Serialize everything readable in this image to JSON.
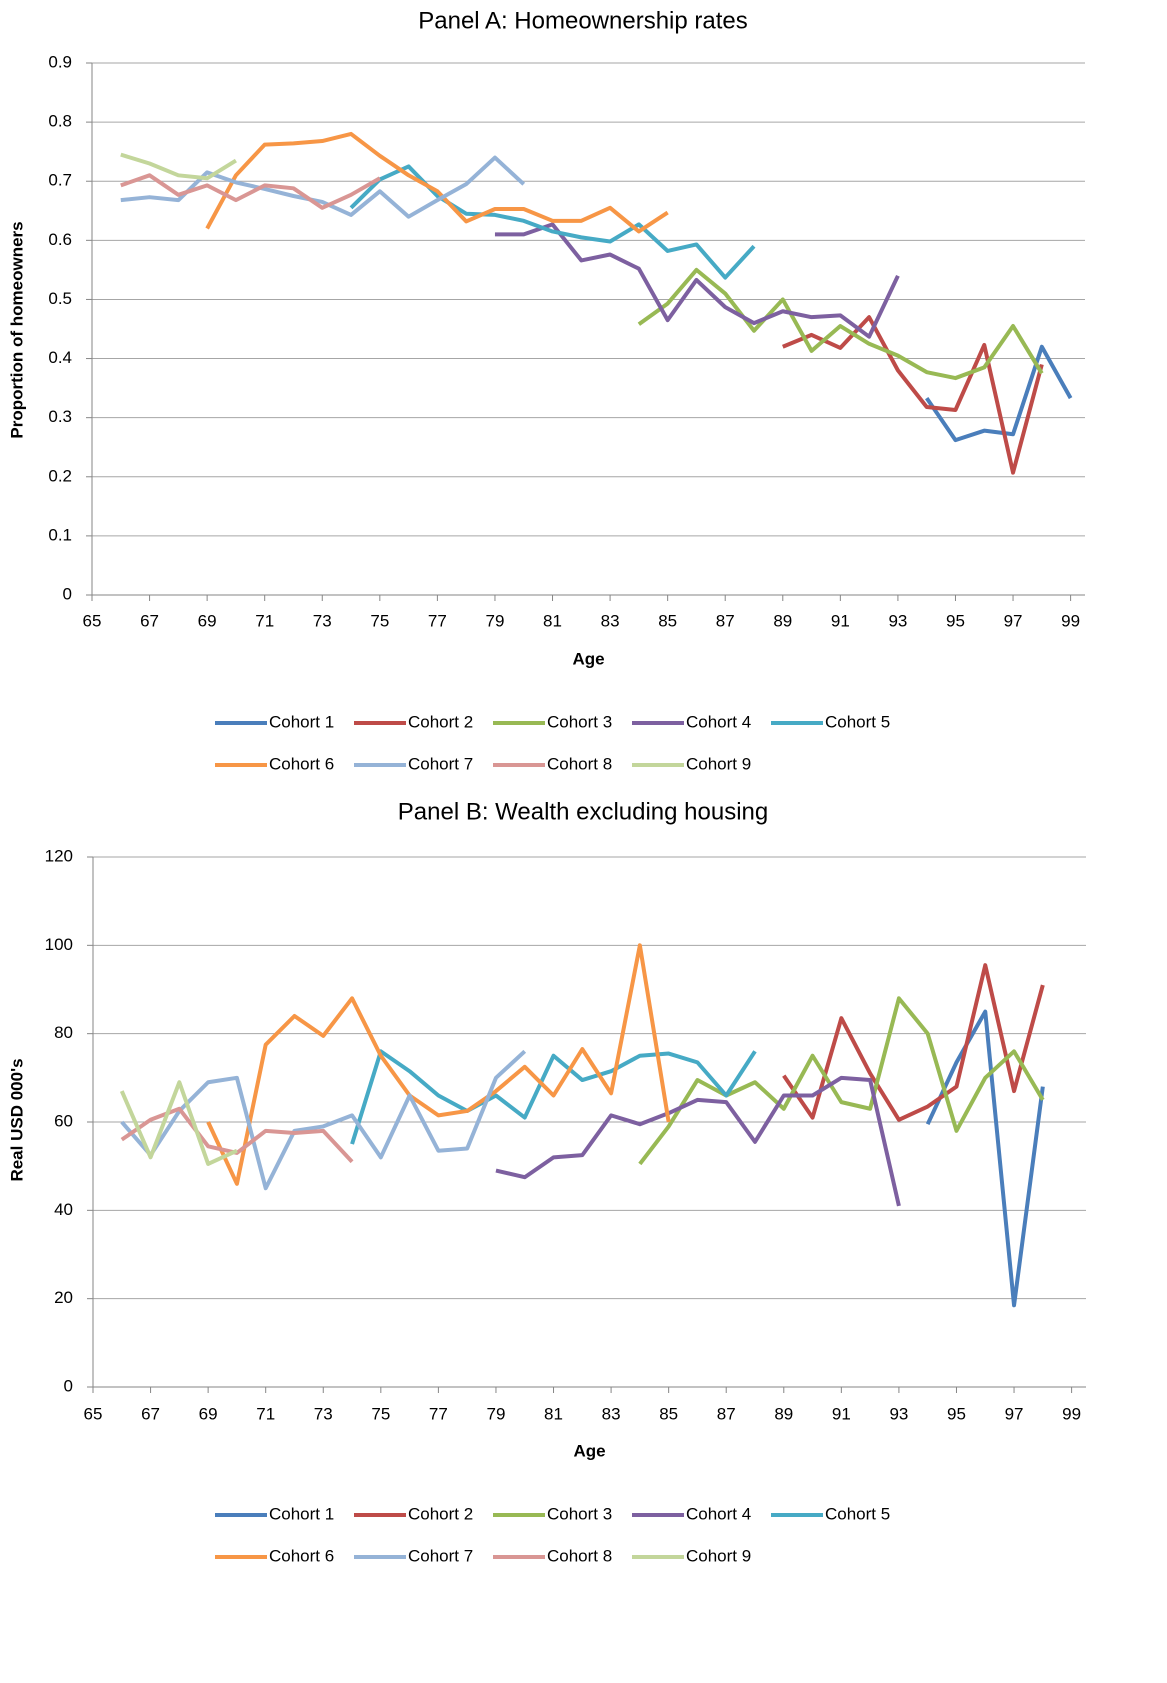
{
  "chart_data": [
    {
      "type": "line",
      "title": "Panel A: Homeownership rates",
      "x_label": "Age",
      "y_label": "Proportion of homeowners",
      "xlim": [
        65,
        99.5
      ],
      "xticks": [
        65,
        67,
        69,
        71,
        73,
        75,
        77,
        79,
        81,
        83,
        85,
        87,
        89,
        91,
        93,
        95,
        97,
        99
      ],
      "ylim": [
        0,
        0.9
      ],
      "yticks": [
        0,
        0.1,
        0.2,
        0.3,
        0.4,
        0.5,
        0.6,
        0.7,
        0.8,
        0.9
      ],
      "grid": true,
      "series": [
        {
          "name": "Cohort 1",
          "color": "#4a7ebb",
          "x": [
            94,
            95,
            96,
            97,
            98,
            99
          ],
          "values": [
            0.333,
            0.262,
            0.278,
            0.272,
            0.42,
            0.333
          ]
        },
        {
          "name": "Cohort 2",
          "color": "#be4b48",
          "x": [
            89,
            90,
            91,
            92,
            93,
            94,
            95,
            96,
            97,
            98
          ],
          "values": [
            0.42,
            0.44,
            0.418,
            0.47,
            0.38,
            0.318,
            0.313,
            0.423,
            0.207,
            0.39
          ]
        },
        {
          "name": "Cohort 3",
          "color": "#98b954",
          "x": [
            84,
            85,
            86,
            87,
            88,
            89,
            90,
            91,
            92,
            93,
            94,
            95,
            96,
            97,
            98
          ],
          "values": [
            0.458,
            0.493,
            0.55,
            0.51,
            0.447,
            0.5,
            0.413,
            0.455,
            0.425,
            0.405,
            0.377,
            0.367,
            0.385,
            0.455,
            0.375
          ]
        },
        {
          "name": "Cohort 4",
          "color": "#7d60a0",
          "x": [
            79,
            80,
            81,
            82,
            83,
            84,
            85,
            86,
            87,
            88,
            89,
            90,
            91,
            92,
            93
          ],
          "values": [
            0.61,
            0.61,
            0.627,
            0.566,
            0.576,
            0.552,
            0.465,
            0.533,
            0.487,
            0.46,
            0.48,
            0.47,
            0.473,
            0.437,
            0.54
          ]
        },
        {
          "name": "Cohort 5",
          "color": "#46aac5",
          "x": [
            74,
            75,
            76,
            77,
            78,
            79,
            80,
            81,
            82,
            83,
            84,
            85,
            86,
            87,
            88
          ],
          "values": [
            0.655,
            0.703,
            0.725,
            0.675,
            0.645,
            0.643,
            0.633,
            0.615,
            0.605,
            0.598,
            0.627,
            0.582,
            0.593,
            0.537,
            0.59
          ]
        },
        {
          "name": "Cohort 6",
          "color": "#f79646",
          "x": [
            69,
            70,
            71,
            72,
            73,
            74,
            75,
            76,
            77,
            78,
            79,
            80,
            81,
            82,
            83,
            84,
            85
          ],
          "values": [
            0.62,
            0.71,
            0.762,
            0.764,
            0.768,
            0.78,
            0.743,
            0.71,
            0.683,
            0.632,
            0.653,
            0.653,
            0.633,
            0.633,
            0.655,
            0.615,
            0.647
          ]
        },
        {
          "name": "Cohort 7",
          "color": "#95b3d7",
          "x": [
            66,
            67,
            68,
            69,
            70,
            71,
            72,
            73,
            74,
            75,
            76,
            77,
            78,
            79,
            80
          ],
          "values": [
            0.668,
            0.673,
            0.668,
            0.715,
            0.698,
            0.687,
            0.675,
            0.665,
            0.643,
            0.683,
            0.64,
            0.668,
            0.695,
            0.74,
            0.695
          ]
        },
        {
          "name": "Cohort 8",
          "color": "#d99694",
          "x": [
            66,
            67,
            68,
            69,
            70,
            71,
            72,
            73,
            74,
            75
          ],
          "values": [
            0.693,
            0.71,
            0.677,
            0.693,
            0.668,
            0.693,
            0.688,
            0.655,
            0.677,
            0.705
          ]
        },
        {
          "name": "Cohort 9",
          "color": "#c3d69b",
          "x": [
            66,
            67,
            68,
            69,
            70
          ],
          "values": [
            0.745,
            0.73,
            0.71,
            0.705,
            0.735
          ]
        }
      ]
    },
    {
      "type": "line",
      "title": "Panel B: Wealth excluding housing",
      "x_label": "Age",
      "y_label": "Real USD 000's",
      "xlim": [
        65,
        99.5
      ],
      "xticks": [
        65,
        67,
        69,
        71,
        73,
        75,
        77,
        79,
        81,
        83,
        85,
        87,
        89,
        91,
        93,
        95,
        97,
        99
      ],
      "ylim": [
        0,
        120
      ],
      "yticks": [
        0,
        20,
        40,
        60,
        80,
        100,
        120
      ],
      "grid": true,
      "series": [
        {
          "name": "Cohort 1",
          "color": "#4a7ebb",
          "x": [
            94,
            95,
            96,
            97,
            98
          ],
          "values": [
            59.5,
            73.5,
            85,
            18.5,
            68
          ]
        },
        {
          "name": "Cohort 2",
          "color": "#be4b48",
          "x": [
            89,
            90,
            91,
            92,
            93,
            94,
            95,
            96,
            97,
            98
          ],
          "values": [
            70.5,
            61,
            83.5,
            71,
            60.5,
            63.5,
            68,
            95.5,
            67,
            91
          ]
        },
        {
          "name": "Cohort 3",
          "color": "#98b954",
          "x": [
            84,
            85,
            86,
            87,
            88,
            89,
            90,
            91,
            92,
            93,
            94,
            95,
            96,
            97,
            98
          ],
          "values": [
            50.5,
            59,
            69.5,
            66,
            69,
            63,
            75,
            64.5,
            63,
            88,
            80,
            58,
            70,
            76,
            65
          ]
        },
        {
          "name": "Cohort 4",
          "color": "#7d60a0",
          "x": [
            79,
            80,
            81,
            82,
            83,
            84,
            85,
            86,
            87,
            88,
            89,
            90,
            91,
            92,
            93
          ],
          "values": [
            49,
            47.5,
            52,
            52.5,
            61.5,
            59.5,
            62,
            65,
            64.5,
            55.5,
            66,
            66,
            70,
            69.5,
            41
          ]
        },
        {
          "name": "Cohort 5",
          "color": "#46aac5",
          "x": [
            74,
            75,
            76,
            77,
            78,
            79,
            80,
            81,
            82,
            83,
            84,
            85,
            86,
            87,
            88
          ],
          "values": [
            55,
            76,
            71.5,
            66,
            62.5,
            66,
            61,
            75,
            69.5,
            71.5,
            75,
            75.5,
            73.5,
            66,
            76
          ]
        },
        {
          "name": "Cohort 6",
          "color": "#f79646",
          "x": [
            69,
            70,
            71,
            72,
            73,
            74,
            75,
            76,
            77,
            78,
            79,
            80,
            81,
            82,
            83,
            84,
            85
          ],
          "values": [
            60,
            46,
            77.5,
            84,
            79.5,
            88,
            75,
            66,
            61.5,
            62.5,
            67,
            72.5,
            66,
            76.5,
            66.5,
            100,
            60
          ]
        },
        {
          "name": "Cohort 7",
          "color": "#95b3d7",
          "x": [
            66,
            67,
            68,
            69,
            70,
            71,
            72,
            73,
            74,
            75,
            76,
            77,
            78,
            79,
            80
          ],
          "values": [
            60,
            52.5,
            62.5,
            69,
            70,
            45,
            58,
            59,
            61.5,
            52,
            66,
            53.5,
            54,
            70,
            76
          ]
        },
        {
          "name": "Cohort 8",
          "color": "#d99694",
          "x": [
            66,
            67,
            68,
            69,
            70,
            71,
            72,
            73,
            74
          ],
          "values": [
            56,
            60.5,
            63,
            54.5,
            53,
            58,
            57.5,
            58,
            51
          ]
        },
        {
          "name": "Cohort 9",
          "color": "#c3d69b",
          "x": [
            66,
            67,
            68,
            69,
            70
          ],
          "values": [
            67,
            52,
            69,
            50.5,
            53.5
          ]
        }
      ]
    }
  ]
}
